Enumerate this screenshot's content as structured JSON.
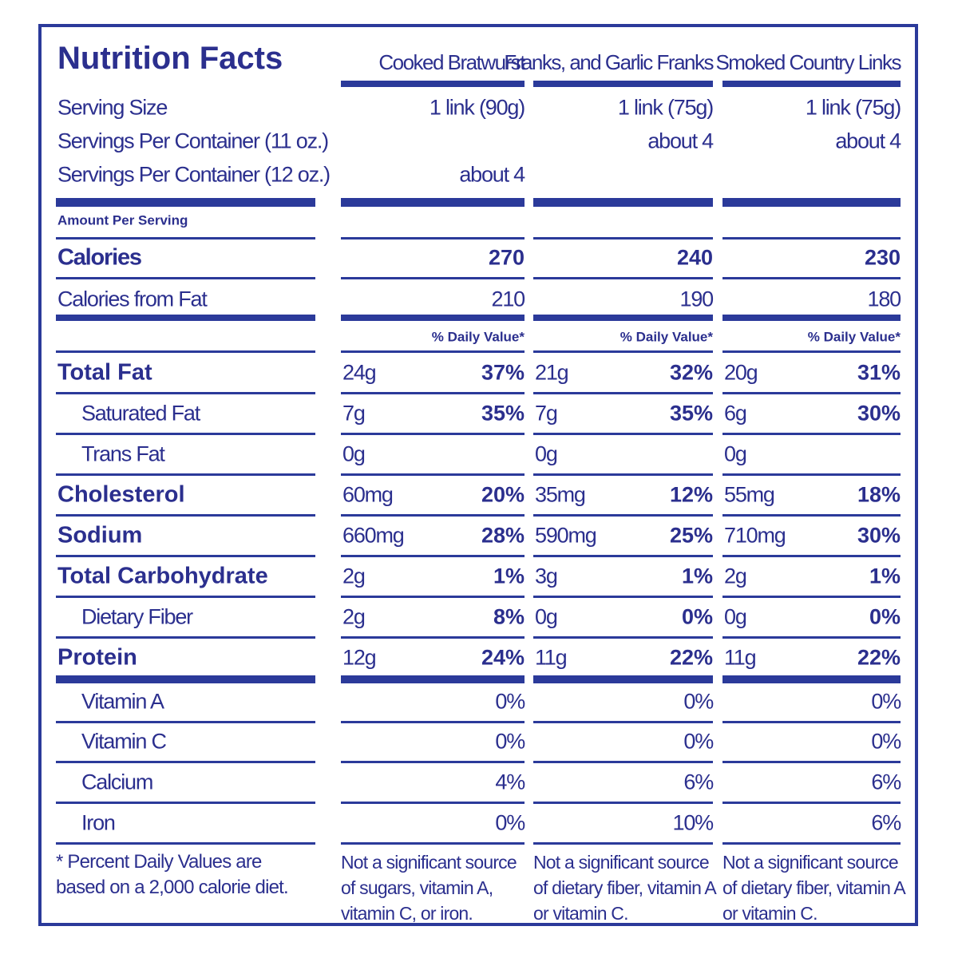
{
  "title": "Nutrition Facts",
  "labels": {
    "serving_size": "Serving Size",
    "servings_11oz": "Servings Per Container (11 oz.)",
    "servings_12oz": "Servings Per Container (12 oz.)",
    "amount_per_serving": "Amount Per Serving",
    "calories": "Calories",
    "calories_from_fat": "Calories from Fat",
    "nutrients": [
      "Total Fat",
      "Saturated Fat",
      "Trans Fat",
      "Cholesterol",
      "Sodium",
      "Total Carbohydrate",
      "Dietary Fiber",
      "Protein"
    ],
    "vitamins": [
      "Vitamin A",
      "Vitamin C",
      "Calcium",
      "Iron"
    ],
    "footnote": "* Percent Daily Values are based on a 2,000 calorie diet."
  },
  "columns": [
    {
      "name": "Cooked Bratwurst",
      "serving_size": "1 link (90g)",
      "servings_11oz": null,
      "servings_12oz": "about 4",
      "calories": 270,
      "calories_from_fat": 210,
      "dv_header": "% Daily Value*",
      "nutrients": [
        [
          "24g",
          "37%"
        ],
        [
          "7g",
          "35%"
        ],
        [
          "0g",
          null
        ],
        [
          "60mg",
          "20%"
        ],
        [
          "660mg",
          "28%"
        ],
        [
          "2g",
          "1%"
        ],
        [
          "2g",
          "8%"
        ],
        [
          "12g",
          "24%"
        ]
      ],
      "vitamins": [
        "0%",
        "0%",
        "4%",
        "0%"
      ],
      "footnote": "Not a significant source of sugars, vitamin A, vitamin C, or iron."
    },
    {
      "name": "Franks, and Garlic Franks",
      "serving_size": "1 link (75g)",
      "servings_11oz": "about 4",
      "servings_12oz": null,
      "calories": 240,
      "calories_from_fat": 190,
      "dv_header": "% Daily Value*",
      "nutrients": [
        [
          "21g",
          "32%"
        ],
        [
          "7g",
          "35%"
        ],
        [
          "0g",
          null
        ],
        [
          "35mg",
          "12%"
        ],
        [
          "590mg",
          "25%"
        ],
        [
          "3g",
          "1%"
        ],
        [
          "0g",
          "0%"
        ],
        [
          "11g",
          "22%"
        ]
      ],
      "vitamins": [
        "0%",
        "0%",
        "6%",
        "10%"
      ],
      "footnote": "Not a significant source of dietary fiber, vitamin A or vitamin C."
    },
    {
      "name": "Smoked Country Links",
      "serving_size": "1 link (75g)",
      "servings_11oz": "about 4",
      "servings_12oz": null,
      "calories": 230,
      "calories_from_fat": 180,
      "dv_header": "% Daily Value*",
      "nutrients": [
        [
          "20g",
          "31%"
        ],
        [
          "6g",
          "30%"
        ],
        [
          "0g",
          null
        ],
        [
          "55mg",
          "18%"
        ],
        [
          "710mg",
          "30%"
        ],
        [
          "2g",
          "1%"
        ],
        [
          "0g",
          "0%"
        ],
        [
          "11g",
          "22%"
        ]
      ],
      "vitamins": [
        "0%",
        "0%",
        "6%",
        "6%"
      ],
      "footnote": "Not a significant source of dietary fiber, vitamin A or vitamin C."
    }
  ]
}
